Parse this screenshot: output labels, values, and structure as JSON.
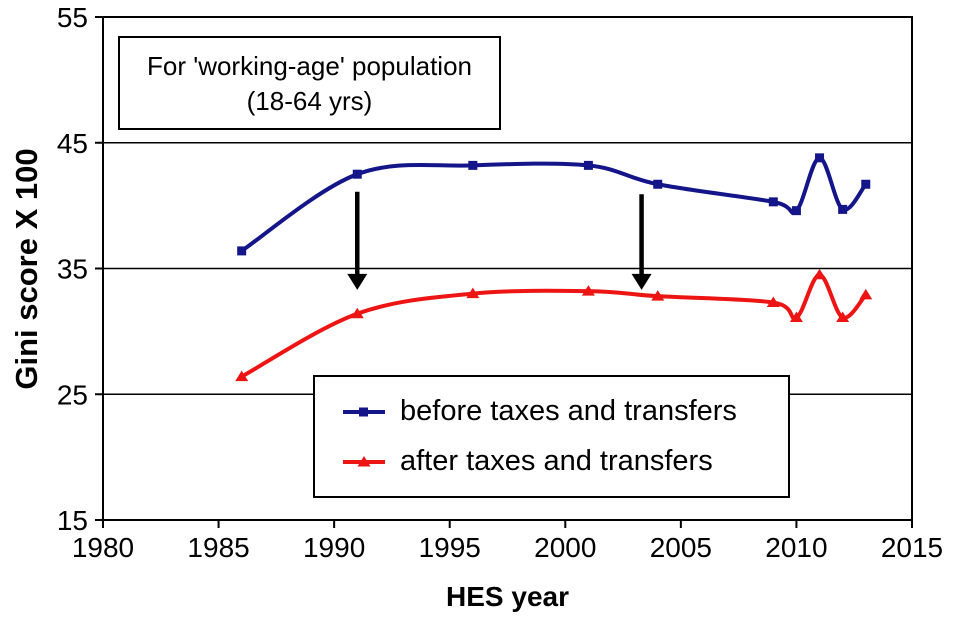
{
  "chart_data": {
    "type": "line",
    "title": "",
    "xlabel": "HES year",
    "ylabel": "Gini score X 100",
    "x": [
      1986,
      1991,
      1996,
      2001,
      2004,
      2009,
      2010,
      2011,
      2012,
      2013
    ],
    "series": [
      {
        "name": "before taxes and transfers",
        "color": "#15158A",
        "marker": "square",
        "values": [
          36.4,
          42.5,
          43.2,
          43.2,
          41.7,
          40.3,
          39.6,
          43.8,
          39.7,
          41.7
        ]
      },
      {
        "name": "after taxes and transfers",
        "color": "#ED1414",
        "marker": "triangle",
        "values": [
          26.4,
          31.4,
          33.0,
          33.2,
          32.8,
          32.3,
          31.1,
          34.5,
          31.1,
          32.9
        ]
      }
    ],
    "xlim": [
      1980,
      2015
    ],
    "ylim": [
      15,
      55
    ],
    "x_ticks": [
      1980,
      1985,
      1990,
      1995,
      2000,
      2005,
      2010,
      2015
    ],
    "y_ticks": [
      15,
      25,
      35,
      45,
      55
    ],
    "grid_y_values": [
      25,
      35,
      45
    ],
    "grid": "horizontal-black",
    "line_style": "smoothed",
    "legend_position": "inside-bottom-center",
    "axis_color": "#000000",
    "annotation": {
      "line1": "For 'working-age' population",
      "line2": "(18-64 yrs)"
    },
    "arrows": [
      {
        "x": 1991.0,
        "from": 41.1,
        "to": 33.3
      },
      {
        "x": 2003.3,
        "from": 40.9,
        "to": 33.3
      }
    ]
  }
}
